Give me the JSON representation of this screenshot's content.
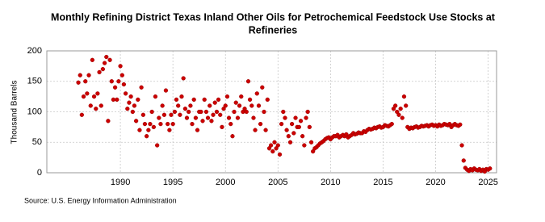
{
  "chart_data": {
    "type": "scatter",
    "title": "Monthly Refining District Texas Inland Other Oils for Petrochemical Feedstock Use Stocks at",
    "title_line2": "Refineries",
    "ylabel": "Thousand Barrels",
    "source": "Source: U.S. Energy Information Administration",
    "color": "#cc0000",
    "grid": true,
    "xlim": [
      1983,
      2025.8
    ],
    "ylim": [
      0,
      200
    ],
    "xticks": [
      1990,
      1995,
      2000,
      2005,
      2010,
      2015,
      2020,
      2025
    ],
    "yticks": [
      0,
      50,
      100,
      150,
      200
    ],
    "x": [
      1986,
      1986.17,
      1986.33,
      1986.5,
      1986.67,
      1986.83,
      1987,
      1987.17,
      1987.33,
      1987.5,
      1987.67,
      1987.83,
      1988,
      1988.17,
      1988.33,
      1988.5,
      1988.67,
      1988.83,
      1989,
      1989.17,
      1989.33,
      1989.5,
      1989.67,
      1989.83,
      1990,
      1990.17,
      1990.33,
      1990.5,
      1990.67,
      1990.83,
      1991,
      1991.17,
      1991.33,
      1991.5,
      1991.67,
      1991.83,
      1992,
      1992.17,
      1992.33,
      1992.5,
      1992.67,
      1992.83,
      1993,
      1993.17,
      1993.33,
      1993.5,
      1993.67,
      1993.83,
      1994,
      1994.17,
      1994.33,
      1994.5,
      1994.67,
      1994.83,
      1995,
      1995.17,
      1995.33,
      1995.5,
      1995.67,
      1995.83,
      1996,
      1996.17,
      1996.33,
      1996.5,
      1996.67,
      1996.83,
      1997,
      1997.17,
      1997.33,
      1997.5,
      1997.67,
      1997.83,
      1998,
      1998.17,
      1998.33,
      1998.5,
      1998.67,
      1998.83,
      1999,
      1999.17,
      1999.33,
      1999.5,
      1999.67,
      1999.83,
      2000,
      2000.17,
      2000.33,
      2000.5,
      2000.67,
      2000.83,
      2001,
      2001.17,
      2001.33,
      2001.5,
      2001.67,
      2001.83,
      2002,
      2002.17,
      2002.33,
      2002.5,
      2002.67,
      2002.83,
      2003,
      2003.17,
      2003.33,
      2003.5,
      2003.67,
      2003.83,
      2004,
      2004.17,
      2004.33,
      2004.5,
      2004.67,
      2004.83,
      2005,
      2005.17,
      2005.33,
      2005.5,
      2005.67,
      2005.83,
      2006,
      2006.17,
      2006.33,
      2006.5,
      2006.67,
      2006.83,
      2007,
      2007.17,
      2007.33,
      2007.5,
      2007.67,
      2007.83,
      2008,
      2008.17,
      2008.33,
      2008.5,
      2008.67,
      2008.83,
      2009,
      2009.17,
      2009.33,
      2009.5,
      2009.67,
      2009.83,
      2010,
      2010.17,
      2010.33,
      2010.5,
      2010.67,
      2010.83,
      2011,
      2011.17,
      2011.33,
      2011.5,
      2011.67,
      2011.83,
      2012,
      2012.17,
      2012.33,
      2012.5,
      2012.67,
      2012.83,
      2013,
      2013.17,
      2013.33,
      2013.5,
      2013.67,
      2013.83,
      2014,
      2014.17,
      2014.33,
      2014.5,
      2014.67,
      2014.83,
      2015,
      2015.17,
      2015.33,
      2015.5,
      2015.67,
      2015.83,
      2016,
      2016.17,
      2016.33,
      2016.5,
      2016.67,
      2016.83,
      2017,
      2017.17,
      2017.33,
      2017.5,
      2017.67,
      2017.83,
      2018,
      2018.17,
      2018.33,
      2018.5,
      2018.67,
      2018.83,
      2019,
      2019.17,
      2019.33,
      2019.5,
      2019.67,
      2019.83,
      2020,
      2020.17,
      2020.33,
      2020.5,
      2020.67,
      2020.83,
      2021,
      2021.17,
      2021.33,
      2021.5,
      2021.67,
      2021.83,
      2022,
      2022.17,
      2022.33,
      2022.5,
      2022.67,
      2022.83,
      2023,
      2023.17,
      2023.33,
      2023.5,
      2023.67,
      2023.83,
      2024,
      2024.17,
      2024.33,
      2024.5,
      2024.67,
      2024.83,
      2025,
      2025.17
    ],
    "values": [
      148,
      160,
      95,
      125,
      150,
      130,
      160,
      110,
      185,
      125,
      105,
      130,
      165,
      110,
      170,
      180,
      190,
      85,
      185,
      150,
      120,
      140,
      120,
      150,
      175,
      160,
      145,
      130,
      105,
      115,
      125,
      100,
      110,
      85,
      120,
      70,
      140,
      95,
      80,
      60,
      70,
      80,
      100,
      75,
      125,
      45,
      90,
      80,
      110,
      95,
      135,
      80,
      70,
      95,
      80,
      100,
      120,
      110,
      95,
      125,
      155,
      105,
      90,
      100,
      110,
      80,
      120,
      90,
      70,
      100,
      100,
      85,
      120,
      100,
      90,
      110,
      85,
      95,
      115,
      100,
      120,
      95,
      75,
      105,
      110,
      125,
      90,
      80,
      60,
      100,
      115,
      90,
      110,
      125,
      100,
      105,
      100,
      150,
      120,
      110,
      90,
      70,
      130,
      110,
      80,
      140,
      100,
      70,
      120,
      40,
      45,
      35,
      50,
      40,
      45,
      30,
      80,
      100,
      90,
      70,
      60,
      50,
      80,
      65,
      90,
      75,
      75,
      85,
      60,
      45,
      90,
      100,
      75,
      50,
      35,
      40,
      42,
      45,
      48,
      50,
      52,
      55,
      57,
      58,
      55,
      58,
      60,
      60,
      62,
      58,
      60,
      62,
      60,
      63,
      58,
      60,
      62,
      65,
      63,
      64,
      66,
      65,
      65,
      68,
      67,
      70,
      72,
      71,
      72,
      74,
      73,
      75,
      76,
      74,
      75,
      78,
      77,
      76,
      78,
      80,
      105,
      110,
      100,
      95,
      105,
      90,
      125,
      110,
      75,
      72,
      74,
      73,
      75,
      76,
      74,
      75,
      77,
      76,
      77,
      78,
      76,
      78,
      79,
      77,
      78,
      76,
      79,
      77,
      78,
      80,
      79,
      78,
      80,
      75,
      78,
      80,
      78,
      77,
      79,
      45,
      20,
      8,
      5,
      3,
      6,
      4,
      7,
      5,
      4,
      6,
      3,
      5,
      2,
      6,
      5,
      7
    ]
  }
}
